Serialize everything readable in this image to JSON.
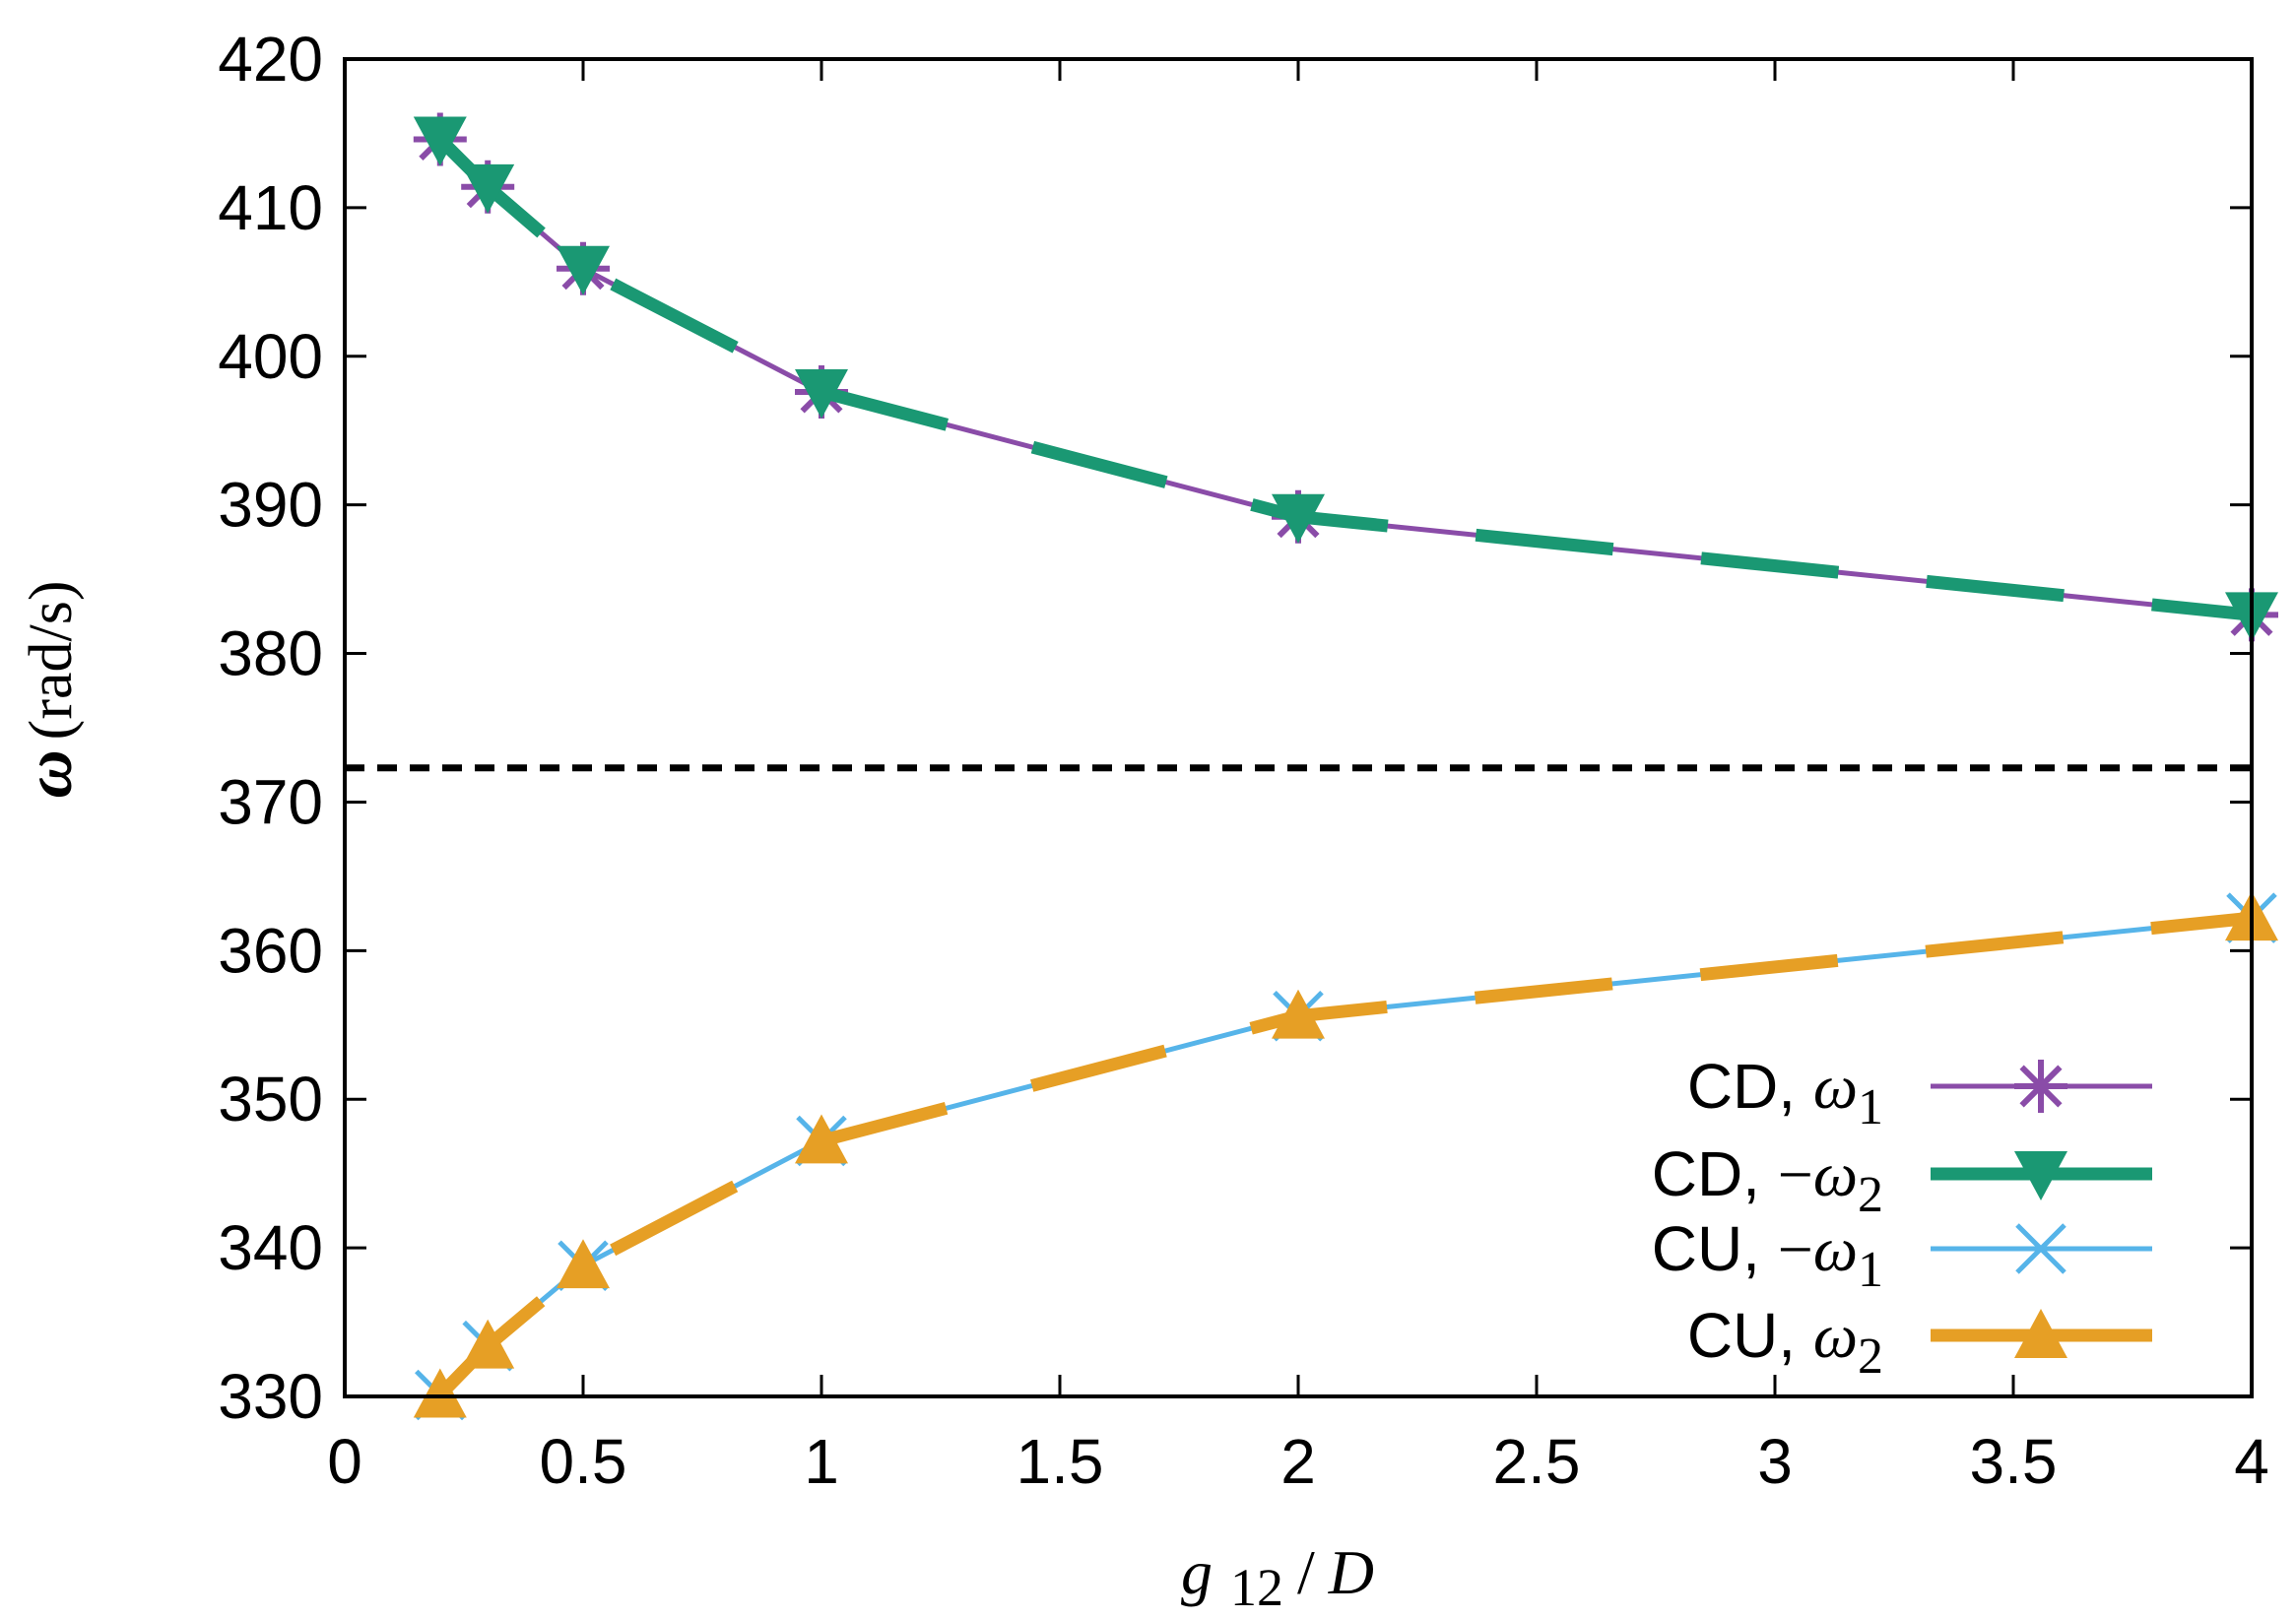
{
  "chart_data": {
    "type": "line",
    "title": "",
    "xlabel": {
      "var": "g",
      "sub": "12",
      "sep": "/",
      "denom": "D"
    },
    "ylabel": {
      "symbol": "ω",
      "unit": "(rad/s)"
    },
    "xlim": [
      0,
      4
    ],
    "ylim": [
      330,
      420
    ],
    "xticks": [
      0,
      0.5,
      1,
      1.5,
      2,
      2.5,
      3,
      3.5,
      4
    ],
    "xtick_labels": [
      "0",
      "0.5",
      "1",
      "1.5",
      "2",
      "2.5",
      "3",
      "3.5",
      "4"
    ],
    "yticks": [
      330,
      340,
      350,
      360,
      370,
      380,
      390,
      400,
      410,
      420
    ],
    "ytick_labels": [
      "330",
      "340",
      "350",
      "360",
      "370",
      "380",
      "390",
      "400",
      "410",
      "420"
    ],
    "grid": false,
    "legend_position": "bottom-right",
    "reference_line": {
      "y": 372.3,
      "style": "dashed",
      "color": "#000000"
    },
    "series": [
      {
        "name": "CD, ω1",
        "label_main": "CD, ",
        "label_sign": "",
        "label_sym": "ω",
        "label_sub": "1",
        "color": "#8a4ca8",
        "marker": "asterisk",
        "line": "solid-thin",
        "x": [
          0.2,
          0.3,
          0.5,
          1,
          2,
          4
        ],
        "y": [
          414.6,
          411.4,
          405.9,
          397.6,
          389.2,
          382.6
        ]
      },
      {
        "name": "CD, −ω2",
        "label_main": "CD, ",
        "label_sign": "−",
        "label_sym": "ω",
        "label_sub": "2",
        "color": "#1a9873",
        "marker": "triangle-down",
        "line": "dashed-thick",
        "x": [
          0.2,
          0.3,
          0.5,
          1,
          2,
          4
        ],
        "y": [
          414.6,
          411.4,
          405.9,
          397.6,
          389.2,
          382.6
        ]
      },
      {
        "name": "CU, −ω1",
        "label_main": "CU, ",
        "label_sign": "−",
        "label_sym": "ω",
        "label_sub": "1",
        "color": "#56b4e9",
        "marker": "cross",
        "line": "solid-thin",
        "x": [
          0.2,
          0.3,
          0.5,
          1,
          2,
          4
        ],
        "y": [
          330.1,
          333.4,
          338.8,
          347.2,
          355.6,
          362.2
        ]
      },
      {
        "name": "CU, ω2",
        "label_main": "CU, ",
        "label_sign": "",
        "label_sym": "ω",
        "label_sub": "2",
        "color": "#e69f25",
        "marker": "triangle-up",
        "line": "dashed-thick",
        "x": [
          0.2,
          0.3,
          0.5,
          1,
          2,
          4
        ],
        "y": [
          330.1,
          333.4,
          338.8,
          347.2,
          355.6,
          362.2
        ]
      }
    ]
  }
}
